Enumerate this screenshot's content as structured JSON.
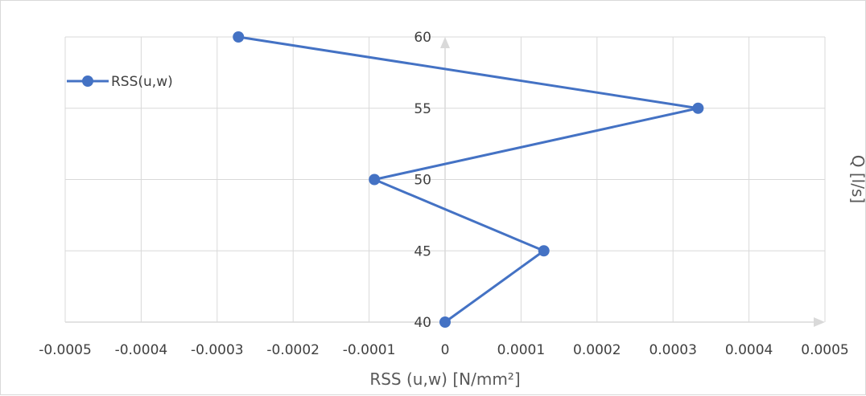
{
  "chart_data": {
    "type": "scatter",
    "title": "",
    "xlabel": "RSS (u,w) [N/mm²]",
    "ylabel": "Q [l/s]",
    "xlim": [
      -0.0005,
      0.0005
    ],
    "ylim": [
      40,
      60
    ],
    "x_ticks": [
      -0.0005,
      -0.0004,
      -0.0003,
      -0.0002,
      -0.0001,
      0,
      0.0001,
      0.0002,
      0.0003,
      0.0004,
      0.0005
    ],
    "x_tick_labels": [
      "-0.0005",
      "-0.0004",
      "-0.0003",
      "-0.0002",
      "-0.0001",
      "0",
      "0.0001",
      "0.0002",
      "0.0003",
      "0.0004",
      "0.0005"
    ],
    "y_ticks": [
      40,
      45,
      50,
      55,
      60
    ],
    "y_tick_labels": [
      "40",
      "45",
      "50",
      "55",
      "60"
    ],
    "grid": true,
    "legend_position": "left",
    "series": [
      {
        "name": "RSS(u,w)",
        "color": "#4472c4",
        "marker": "circle",
        "line": true,
        "x": [
          0,
          0.00013,
          -9.3e-05,
          0.000333,
          -0.000272
        ],
        "y": [
          40,
          45,
          50,
          55,
          60
        ]
      }
    ]
  }
}
